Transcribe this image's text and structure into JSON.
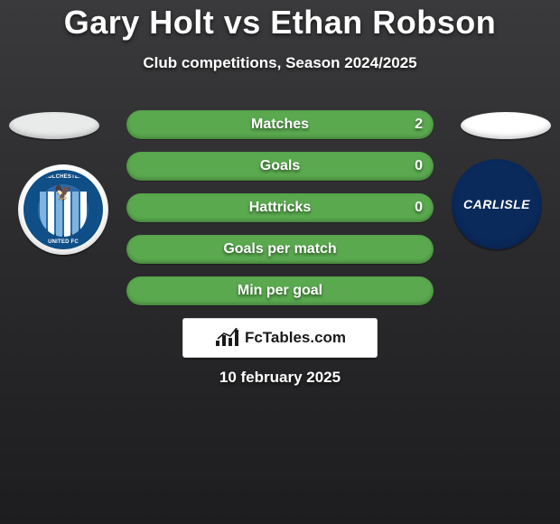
{
  "background": {
    "gradient_from": "#3a3a3c",
    "gradient_mid": "#2a2a2c",
    "gradient_to": "#1d1d1f"
  },
  "header": {
    "title": "Gary Holt vs Ethan Robson",
    "title_fontsize": 36,
    "title_color": "#ffffff",
    "subtitle": "Club competitions, Season 2024/2025",
    "subtitle_fontsize": 17,
    "subtitle_color": "#ffffff"
  },
  "sides": {
    "left": {
      "oval_color": "#e9ebea"
    },
    "right": {
      "oval_color": "#ffffff"
    }
  },
  "clubs": {
    "left": {
      "name": "Colchester United FC",
      "badge_bg": "#ffffff",
      "ring_color": "#0f4e86",
      "center_color": "#2b6aa8",
      "stripe_blue": "#7fb4df",
      "stripe_white": "#ffffff",
      "ring_text_top": "COLCHESTER",
      "ring_text_bottom": "UNITED FC"
    },
    "right": {
      "name": "Carlisle",
      "badge_bg": "#0a2a5c",
      "label": "CARLISLE",
      "label_color": "#ffffff"
    }
  },
  "stats": {
    "type": "comparison-bars",
    "pill_height": 32,
    "pill_radius": 16,
    "label_fontsize": 16,
    "value_fontsize": 16,
    "left_fill_color": "#3d8b36",
    "right_fill_color": "#5aa94f",
    "text_color": "#ffffff",
    "rows": [
      {
        "label": "Matches",
        "left_value": "",
        "right_value": "2",
        "left_pct": 0,
        "right_pct": 100
      },
      {
        "label": "Goals",
        "left_value": "",
        "right_value": "0",
        "left_pct": 0,
        "right_pct": 100
      },
      {
        "label": "Hattricks",
        "left_value": "",
        "right_value": "0",
        "left_pct": 0,
        "right_pct": 100
      },
      {
        "label": "Goals per match",
        "left_value": "",
        "right_value": "",
        "left_pct": 0,
        "right_pct": 100
      },
      {
        "label": "Min per goal",
        "left_value": "",
        "right_value": "",
        "left_pct": 0,
        "right_pct": 100
      }
    ]
  },
  "brand": {
    "name": "FcTables.com",
    "text_color": "#1a1a1a",
    "box_bg": "#ffffff",
    "box_border": "#d6d7d5",
    "icon_color": "#1a1a1a",
    "bars": [
      6,
      12,
      9,
      18
    ]
  },
  "footer": {
    "date": "10 february 2025",
    "fontsize": 17,
    "color": "#ffffff"
  }
}
